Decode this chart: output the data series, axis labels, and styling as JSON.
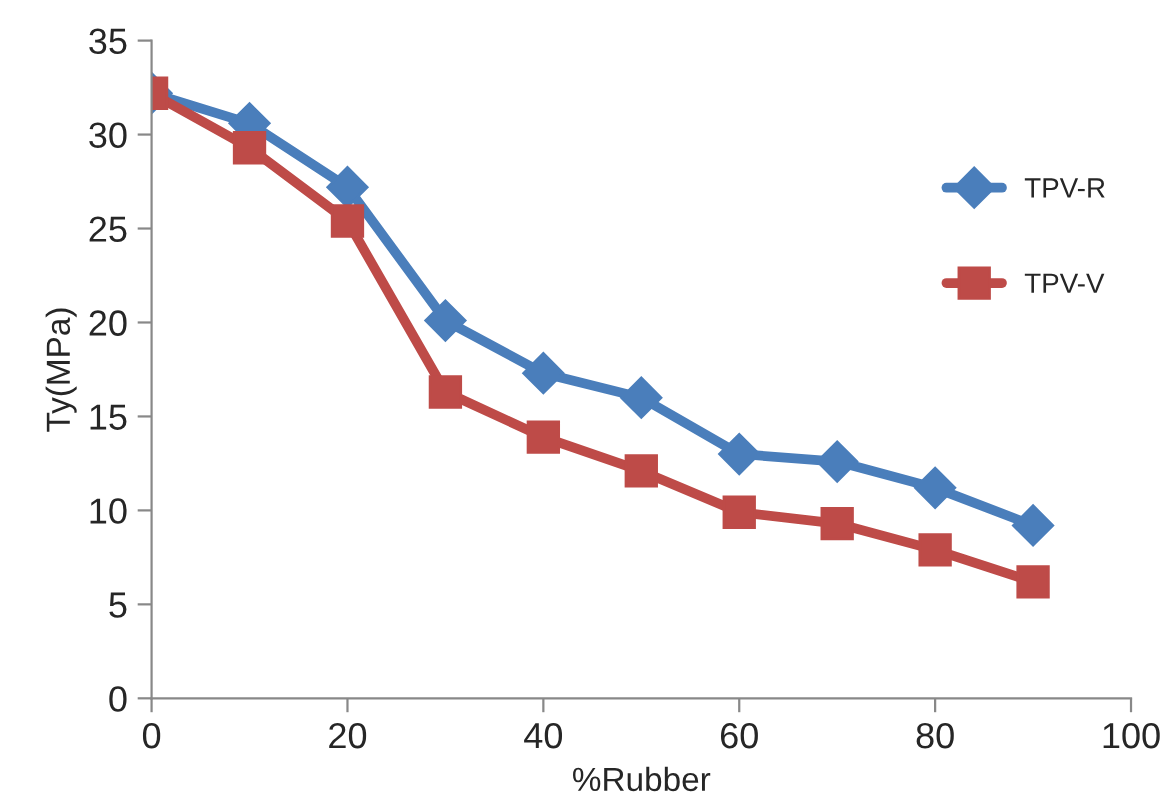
{
  "chart_data": {
    "type": "line",
    "xlabel": "%Rubber",
    "ylabel": "Ty(MPa)",
    "x": [
      0,
      10,
      20,
      30,
      40,
      50,
      60,
      70,
      80,
      90
    ],
    "series": [
      {
        "name": "TPV-R",
        "color": "#4a7ebb",
        "marker": "diamond",
        "values": [
          32.2,
          30.6,
          27.2,
          20.1,
          17.3,
          16.0,
          13.0,
          12.6,
          11.2,
          9.2
        ]
      },
      {
        "name": "TPV-V",
        "color": "#be4b48",
        "marker": "square",
        "values": [
          32.2,
          29.3,
          25.4,
          16.3,
          13.9,
          12.1,
          9.9,
          9.3,
          7.9,
          6.2
        ]
      }
    ],
    "xlim": [
      0,
      100
    ],
    "xticks": [
      0,
      20,
      40,
      60,
      80,
      100
    ],
    "ylim": [
      0,
      35
    ],
    "yticks": [
      0,
      5,
      10,
      15,
      20,
      25,
      30,
      35
    ],
    "grid": false,
    "legend": "right",
    "line_style": "solid"
  }
}
